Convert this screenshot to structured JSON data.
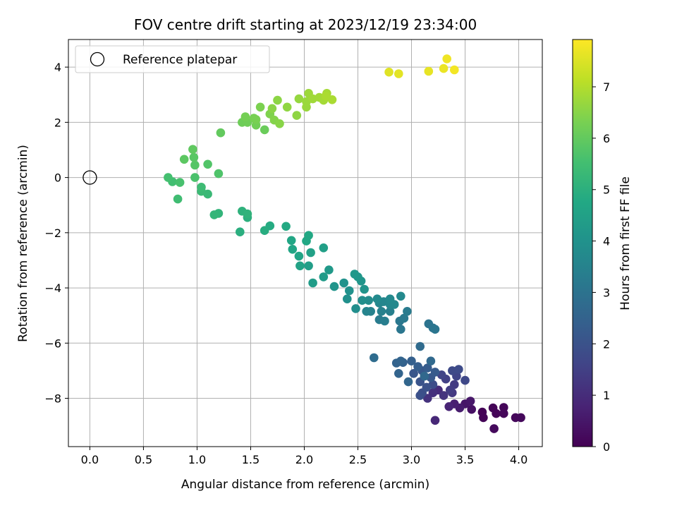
{
  "chart_data": {
    "type": "scatter",
    "title": "FOV centre drift starting at 2023/12/19 23:34:00",
    "xlabel": "Angular distance from reference (arcmin)",
    "ylabel": "Rotation from reference (arcmin)",
    "xlim": [
      -0.2,
      4.22
    ],
    "ylim": [
      -9.75,
      5.0
    ],
    "x_ticks": [
      0.0,
      0.5,
      1.0,
      1.5,
      2.0,
      2.5,
      3.0,
      3.5,
      4.0
    ],
    "x_tick_labels": [
      "0.0",
      "0.5",
      "1.0",
      "1.5",
      "2.0",
      "2.5",
      "3.0",
      "3.5",
      "4.0"
    ],
    "y_ticks": [
      -8,
      -6,
      -4,
      -2,
      0,
      2,
      4
    ],
    "y_tick_labels": [
      "−8",
      "−6",
      "−4",
      "−2",
      "0",
      "2",
      "4"
    ],
    "grid": true,
    "legend": {
      "position": "top-left",
      "entries": [
        "Reference platepar"
      ]
    },
    "reference_point": {
      "x": 0.0,
      "y": 0.0
    },
    "colorbar": {
      "label": "Hours from first FF file",
      "range": [
        0,
        7.92
      ],
      "ticks": [
        0,
        1,
        2,
        3,
        4,
        5,
        6,
        7
      ],
      "tick_labels": [
        "0",
        "1",
        "2",
        "3",
        "4",
        "5",
        "6",
        "7"
      ],
      "colormap": "viridis"
    },
    "points": [
      [
        3.66,
        -8.5,
        0.05
      ],
      [
        3.67,
        -8.7,
        0.07
      ],
      [
        3.76,
        -8.35,
        0.08
      ],
      [
        3.79,
        -8.55,
        0.1
      ],
      [
        3.86,
        -8.33,
        0.12
      ],
      [
        3.86,
        -8.55,
        0.13
      ],
      [
        3.97,
        -8.7,
        0.15
      ],
      [
        4.02,
        -8.7,
        0.17
      ],
      [
        3.77,
        -9.1,
        0.2
      ],
      [
        3.56,
        -8.4,
        0.35
      ],
      [
        3.5,
        -8.2,
        0.45
      ],
      [
        3.55,
        -8.1,
        0.5
      ],
      [
        3.45,
        -8.35,
        0.6
      ],
      [
        3.4,
        -8.2,
        0.7
      ],
      [
        3.35,
        -8.3,
        0.8
      ],
      [
        3.22,
        -8.8,
        0.9
      ],
      [
        3.25,
        -7.7,
        1.0
      ],
      [
        3.2,
        -7.8,
        1.1
      ],
      [
        3.15,
        -8.0,
        1.15
      ],
      [
        3.3,
        -7.9,
        1.2
      ],
      [
        3.38,
        -7.8,
        1.3
      ],
      [
        3.4,
        -7.5,
        1.35
      ],
      [
        3.36,
        -7.7,
        1.4
      ],
      [
        3.32,
        -7.3,
        1.5
      ],
      [
        3.28,
        -7.15,
        1.6
      ],
      [
        3.42,
        -7.2,
        1.62
      ],
      [
        3.5,
        -7.35,
        1.7
      ],
      [
        3.38,
        -7.0,
        1.75
      ],
      [
        3.44,
        -6.95,
        1.8
      ],
      [
        3.2,
        -7.5,
        1.85
      ],
      [
        3.1,
        -7.8,
        1.9
      ],
      [
        3.08,
        -7.9,
        1.95
      ],
      [
        3.14,
        -7.6,
        2.0
      ],
      [
        3.08,
        -7.4,
        2.05
      ],
      [
        3.02,
        -7.1,
        2.1
      ],
      [
        3.1,
        -7.0,
        2.15
      ],
      [
        3.18,
        -7.25,
        2.2
      ],
      [
        3.22,
        -7.05,
        2.25
      ],
      [
        3.15,
        -6.9,
        2.3
      ],
      [
        3.06,
        -6.85,
        2.35
      ],
      [
        3.0,
        -6.65,
        2.4
      ],
      [
        2.92,
        -6.7,
        2.45
      ],
      [
        2.86,
        -6.72,
        2.5
      ],
      [
        2.88,
        -7.1,
        2.52
      ],
      [
        2.9,
        -6.65,
        2.55
      ],
      [
        2.97,
        -7.4,
        2.6
      ],
      [
        3.12,
        -7.2,
        2.65
      ],
      [
        3.18,
        -6.65,
        2.7
      ],
      [
        3.08,
        -6.12,
        2.75
      ],
      [
        2.65,
        -6.53,
        2.8
      ],
      [
        3.16,
        -5.3,
        3.0
      ],
      [
        3.2,
        -5.45,
        3.05
      ],
      [
        3.22,
        -5.5,
        3.08
      ],
      [
        2.9,
        -5.5,
        3.12
      ],
      [
        2.89,
        -5.2,
        3.15
      ],
      [
        2.93,
        -5.1,
        3.2
      ],
      [
        2.96,
        -4.85,
        3.25
      ],
      [
        2.7,
        -5.15,
        3.3
      ],
      [
        2.75,
        -5.2,
        3.35
      ],
      [
        2.8,
        -4.85,
        3.4
      ],
      [
        2.72,
        -4.85,
        3.45
      ],
      [
        2.62,
        -4.85,
        3.5
      ],
      [
        2.58,
        -4.85,
        3.55
      ],
      [
        2.7,
        -4.55,
        3.6
      ],
      [
        2.74,
        -4.5,
        3.62
      ],
      [
        2.8,
        -4.6,
        3.65
      ],
      [
        2.84,
        -4.6,
        3.68
      ],
      [
        2.8,
        -4.4,
        3.7
      ],
      [
        2.9,
        -4.3,
        3.72
      ],
      [
        2.68,
        -4.4,
        3.75
      ],
      [
        2.6,
        -4.45,
        3.8
      ],
      [
        2.54,
        -4.45,
        3.85
      ],
      [
        2.48,
        -4.75,
        3.88
      ],
      [
        2.4,
        -4.4,
        3.92
      ],
      [
        2.42,
        -4.1,
        3.95
      ],
      [
        2.37,
        -3.82,
        4.0
      ],
      [
        2.28,
        -3.95,
        4.05
      ],
      [
        2.56,
        -4.05,
        4.08
      ],
      [
        2.53,
        -3.75,
        4.1
      ],
      [
        2.5,
        -3.6,
        4.15
      ],
      [
        2.47,
        -3.5,
        4.2
      ],
      [
        2.23,
        -3.35,
        4.25
      ],
      [
        2.18,
        -3.6,
        4.3
      ],
      [
        2.08,
        -3.82,
        4.35
      ],
      [
        2.04,
        -3.2,
        4.4
      ],
      [
        2.18,
        -2.55,
        4.45
      ],
      [
        2.06,
        -2.72,
        4.5
      ],
      [
        1.96,
        -3.2,
        4.55
      ],
      [
        1.95,
        -2.85,
        4.6
      ],
      [
        1.89,
        -2.6,
        4.65
      ],
      [
        1.88,
        -2.28,
        4.7
      ],
      [
        2.02,
        -2.3,
        4.72
      ],
      [
        2.04,
        -2.1,
        4.75
      ],
      [
        1.83,
        -1.77,
        4.8
      ],
      [
        1.68,
        -1.75,
        4.85
      ],
      [
        1.63,
        -1.92,
        4.9
      ],
      [
        1.4,
        -1.97,
        4.95
      ],
      [
        1.47,
        -1.45,
        5.0
      ],
      [
        1.42,
        -1.22,
        5.05
      ],
      [
        1.47,
        -1.32,
        5.1
      ],
      [
        1.2,
        -1.3,
        5.15
      ],
      [
        1.16,
        -1.35,
        5.2
      ],
      [
        1.1,
        -0.6,
        5.3
      ],
      [
        1.04,
        -0.5,
        5.35
      ],
      [
        1.04,
        -0.35,
        5.4
      ],
      [
        0.82,
        -0.78,
        5.45
      ],
      [
        0.77,
        -0.15,
        5.5
      ],
      [
        0.73,
        0.0,
        5.55
      ],
      [
        0.84,
        -0.18,
        5.6
      ],
      [
        0.98,
        0.0,
        5.65
      ],
      [
        1.2,
        0.14,
        5.7
      ],
      [
        1.1,
        0.48,
        5.75
      ],
      [
        0.98,
        0.45,
        5.8
      ],
      [
        0.97,
        0.73,
        5.85
      ],
      [
        0.88,
        0.66,
        5.9
      ],
      [
        0.96,
        1.02,
        5.95
      ],
      [
        1.22,
        1.62,
        6.0
      ],
      [
        1.63,
        1.73,
        6.1
      ],
      [
        1.42,
        2.0,
        6.15
      ],
      [
        1.47,
        2.0,
        6.18
      ],
      [
        1.55,
        1.9,
        6.2
      ],
      [
        1.45,
        2.2,
        6.25
      ],
      [
        1.53,
        2.15,
        6.28
      ],
      [
        1.55,
        2.1,
        6.3
      ],
      [
        1.59,
        2.55,
        6.35
      ],
      [
        1.68,
        2.3,
        6.4
      ],
      [
        1.72,
        2.08,
        6.45
      ],
      [
        1.77,
        1.95,
        6.5
      ],
      [
        1.7,
        2.5,
        6.52
      ],
      [
        1.75,
        2.8,
        6.55
      ],
      [
        1.93,
        2.25,
        6.58
      ],
      [
        1.84,
        2.55,
        6.6
      ],
      [
        1.95,
        2.85,
        6.65
      ],
      [
        2.02,
        2.55,
        6.7
      ],
      [
        2.02,
        2.75,
        6.72
      ],
      [
        2.04,
        3.05,
        6.75
      ],
      [
        2.08,
        2.85,
        6.78
      ],
      [
        2.14,
        2.9,
        6.8
      ],
      [
        2.18,
        2.8,
        6.83
      ],
      [
        2.21,
        3.05,
        6.86
      ],
      [
        2.26,
        2.82,
        6.9
      ],
      [
        2.2,
        2.95,
        6.92
      ],
      [
        2.79,
        3.82,
        7.55
      ],
      [
        2.88,
        3.76,
        7.6
      ],
      [
        3.16,
        3.85,
        7.65
      ],
      [
        3.3,
        3.95,
        7.7
      ],
      [
        3.33,
        4.3,
        7.75
      ],
      [
        3.4,
        3.9,
        7.8
      ]
    ]
  }
}
